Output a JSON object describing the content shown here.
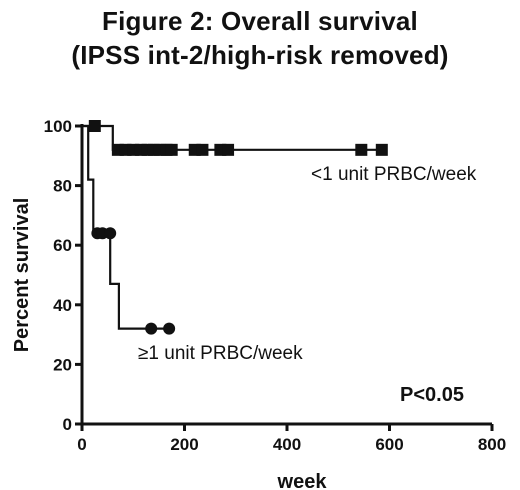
{
  "chart_data": {
    "type": "line",
    "step": true,
    "title": "Figure 2: Overall survival",
    "subtitle": "(IPSS int-2/high-risk removed)",
    "xlabel": "week",
    "ylabel": "Percent survival",
    "xlim": [
      0,
      800
    ],
    "ylim": [
      0,
      100
    ],
    "xticks": [
      0,
      200,
      400,
      600,
      800
    ],
    "yticks": [
      0,
      20,
      40,
      60,
      80,
      100
    ],
    "grid": false,
    "series": [
      {
        "name": "<1 unit PRBC/week",
        "steps": [
          [
            0,
            100
          ],
          [
            60,
            100
          ],
          [
            60,
            92
          ],
          [
            585,
            92
          ]
        ],
        "censored": [
          [
            25,
            100
          ],
          [
            70,
            92
          ],
          [
            85,
            92
          ],
          [
            100,
            92
          ],
          [
            115,
            92
          ],
          [
            128,
            92
          ],
          [
            140,
            92
          ],
          [
            152,
            92
          ],
          [
            165,
            92
          ],
          [
            175,
            92
          ],
          [
            220,
            92
          ],
          [
            235,
            92
          ],
          [
            270,
            92
          ],
          [
            285,
            92
          ],
          [
            545,
            92
          ],
          [
            585,
            92
          ]
        ]
      },
      {
        "name": "≥1 unit PRBC/week",
        "steps": [
          [
            0,
            100
          ],
          [
            12,
            100
          ],
          [
            12,
            82
          ],
          [
            22,
            82
          ],
          [
            22,
            64
          ],
          [
            55,
            64
          ],
          [
            55,
            47
          ],
          [
            72,
            47
          ],
          [
            72,
            32
          ],
          [
            170,
            32
          ]
        ],
        "censored": [
          [
            30,
            64
          ],
          [
            40,
            64
          ],
          [
            55,
            64
          ],
          [
            135,
            32
          ],
          [
            170,
            32
          ]
        ]
      }
    ],
    "annotations": {
      "label_upper": "<1 unit PRBC/week",
      "label_lower": "≥1 unit PRBC/week",
      "pvalue": "P<0.05"
    }
  }
}
